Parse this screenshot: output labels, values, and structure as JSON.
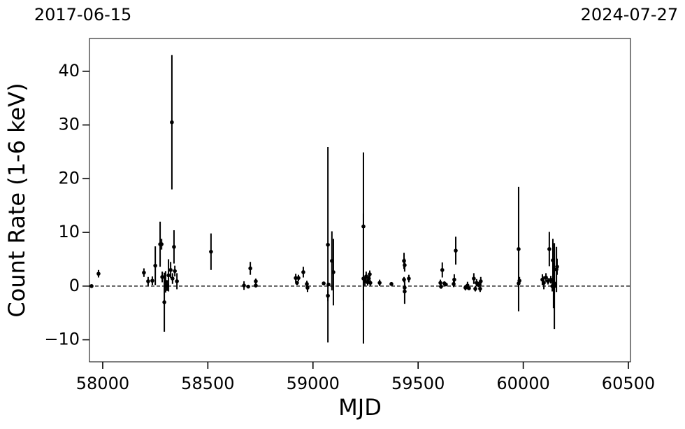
{
  "chart_data": {
    "type": "scatter",
    "x_label": "MJD",
    "y_label": "Count Rate (1-6 keV)",
    "xlim": [
      57937,
      60510
    ],
    "ylim": [
      -14.1,
      46.1
    ],
    "xticks": [
      58000,
      58500,
      59000,
      59500,
      60000,
      60500
    ],
    "yticks": [
      {
        "value": -10,
        "label": "−10"
      },
      0,
      10,
      20,
      30,
      40
    ],
    "x2ticks": [
      {
        "value": 57919,
        "label": "2017-06-15"
      },
      {
        "value": 60518,
        "label": "2024-07-27"
      }
    ],
    "hline": 0,
    "grid": false,
    "series": [
      {
        "color": "#000000",
        "x": [
          57947,
          57980,
          58196,
          58216,
          58236,
          58250,
          58273,
          58280,
          58283,
          58293,
          58299,
          58306,
          58313,
          58323,
          58329,
          58332,
          58339,
          58343,
          58353,
          58515,
          58672,
          58692,
          58702,
          58728,
          58728,
          58918,
          58924,
          58931,
          58954,
          58971,
          58974,
          59051,
          59071,
          59071,
          59074,
          59090,
          59097,
          59240,
          59240,
          59247,
          59253,
          59260,
          59266,
          59270,
          59273,
          59317,
          59373,
          59433,
          59433,
          59436,
          59436,
          59436,
          59456,
          59606,
          59609,
          59615,
          59625,
          59632,
          59669,
          59672,
          59679,
          59725,
          59735,
          59742,
          59765,
          59772,
          59778,
          59788,
          59795,
          59798,
          59978,
          59978,
          59982,
          60091,
          60098,
          60108,
          60118,
          60124,
          60131,
          60138,
          60141,
          60144,
          60148,
          60151,
          60158,
          60161
        ],
        "values": [
          0,
          2.3,
          2.5,
          0.9,
          1.0,
          3.8,
          7.8,
          7.8,
          1.7,
          -3.0,
          0.8,
          0.1,
          2.0,
          3.0,
          30.5,
          1.4,
          7.3,
          2.8,
          0.9,
          6.4,
          0.1,
          -0.1,
          3.3,
          0.9,
          0.1,
          1.5,
          0.6,
          1.5,
          2.6,
          0.4,
          -0.3,
          0.5,
          7.7,
          -1.8,
          0.3,
          4.7,
          2.6,
          11.1,
          1.4,
          0.9,
          1.8,
          0.7,
          1.4,
          2.2,
          0.6,
          0.6,
          0.4,
          4.7,
          1.2,
          3.9,
          -0.3,
          -1.0,
          1.4,
          0.6,
          -0.1,
          3.0,
          0.5,
          0.3,
          0.4,
          1.2,
          6.6,
          -0.3,
          0.1,
          -0.4,
          1.4,
          -0.5,
          0.6,
          0.3,
          -0.5,
          0.9,
          6.9,
          0.5,
          1.0,
          1.2,
          0.6,
          1.6,
          0.9,
          6.9,
          1.2,
          0,
          4.8,
          0.1,
          0,
          0.3,
          3.1,
          3.6
        ],
        "errors": [
          0.2,
          0.7,
          0.8,
          0.8,
          0.8,
          3.6,
          4.2,
          1,
          1,
          5.5,
          2,
          1,
          3,
          1.5,
          12.5,
          1,
          3.1,
          1,
          1.5,
          3.4,
          0.8,
          0.3,
          1.2,
          0.5,
          0.3,
          0.8,
          0.4,
          0.6,
          1.0,
          0.6,
          0.8,
          0.3,
          18.2,
          1.0,
          0.3,
          5.5,
          6.2,
          13.8,
          12.1,
          0.8,
          0.9,
          0.6,
          0.8,
          0.7,
          0.5,
          0.6,
          0.3,
          1.5,
          0.5,
          1.2,
          0.8,
          2.3,
          0.7,
          0.6,
          0.4,
          1.4,
          0.4,
          0.3,
          0.6,
          1.0,
          2.6,
          0.5,
          0.7,
          0.3,
          1.0,
          0.5,
          0.7,
          0.5,
          0.6,
          0.8,
          11.6,
          1.0,
          0.7,
          1.0,
          1.2,
          0.8,
          0.6,
          3.2,
          0.7,
          1,
          4,
          4.2,
          8,
          0.5,
          4.2,
          1.5
        ]
      }
    ]
  }
}
